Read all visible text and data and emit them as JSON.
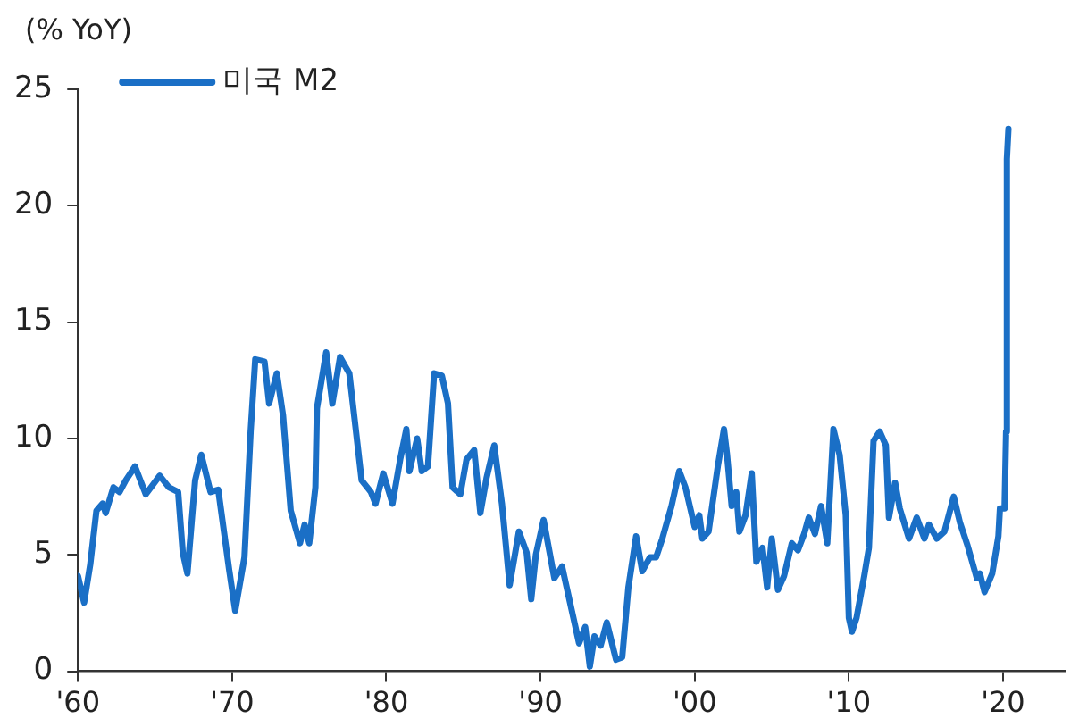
{
  "chart_data": {
    "type": "line",
    "ylabel": "(% YoY)",
    "legend": "top left",
    "grid": false,
    "marker": "none",
    "line_style": "solid",
    "xlim": [
      1960,
      2024
    ],
    "xticks": [
      {
        "value": 1960,
        "label": "'60"
      },
      {
        "value": 1970,
        "label": "'70"
      },
      {
        "value": 1980,
        "label": "'80"
      },
      {
        "value": 1990,
        "label": "'90"
      },
      {
        "value": 2000,
        "label": "'00"
      },
      {
        "value": 2010,
        "label": "'10"
      },
      {
        "value": 2020,
        "label": "'20"
      }
    ],
    "ylim": [
      0,
      25
    ],
    "yticks": [
      0,
      5,
      10,
      15,
      20,
      25
    ],
    "x": [
      1960.0,
      1960.4,
      1960.8,
      1961.2,
      1961.6,
      1961.8,
      1962.3,
      1962.7,
      1963.1,
      1963.7,
      1964.4,
      1965.3,
      1965.9,
      1966.5,
      1966.8,
      1967.1,
      1967.6,
      1968.0,
      1968.6,
      1969.1,
      1969.8,
      1970.2,
      1970.8,
      1971.2,
      1971.5,
      1972.1,
      1972.4,
      1972.9,
      1973.3,
      1973.8,
      1974.4,
      1974.7,
      1975.0,
      1975.4,
      1975.5,
      1976.1,
      1976.5,
      1977.0,
      1977.6,
      1978.0,
      1978.4,
      1979.0,
      1979.3,
      1979.8,
      1980.4,
      1980.9,
      1981.3,
      1981.5,
      1982.0,
      1982.3,
      1982.7,
      1983.1,
      1983.6,
      1984.0,
      1984.3,
      1984.8,
      1985.2,
      1985.7,
      1986.1,
      1986.5,
      1987.0,
      1987.5,
      1988.0,
      1988.6,
      1989.1,
      1989.4,
      1989.7,
      1990.2,
      1990.9,
      1991.4,
      1991.9,
      1992.5,
      1992.9,
      1993.2,
      1993.5,
      1993.9,
      1994.3,
      1994.9,
      1995.3,
      1995.7,
      1996.2,
      1996.6,
      1997.1,
      1997.5,
      1997.9,
      1998.5,
      1999.0,
      1999.4,
      2000.0,
      2000.3,
      2000.5,
      2000.9,
      2001.5,
      2001.9,
      2002.1,
      2002.4,
      2002.7,
      2002.9,
      2003.3,
      2003.7,
      2004.0,
      2004.4,
      2004.7,
      2005.0,
      2005.4,
      2005.8,
      2006.3,
      2006.7,
      2007.1,
      2007.4,
      2007.8,
      2008.2,
      2008.6,
      2009.0,
      2009.4,
      2009.8,
      2010.0,
      2010.2,
      2010.5,
      2011.0,
      2011.3,
      2011.6,
      2012.0,
      2012.4,
      2012.6,
      2013.0,
      2013.3,
      2013.9,
      2014.4,
      2014.9,
      2015.2,
      2015.7,
      2016.2,
      2016.8,
      2017.2,
      2017.7,
      2018.3,
      2018.5,
      2018.8,
      2019.3,
      2019.7,
      2019.8,
      2020.1,
      2020.2,
      2020.25,
      2020.35
    ],
    "series": [
      {
        "name": "미국 M2",
        "color": "#1a6fc6",
        "values": [
          4.1,
          2.95,
          4.6,
          6.9,
          7.2,
          6.8,
          7.9,
          7.7,
          8.2,
          8.8,
          7.6,
          8.4,
          7.9,
          7.7,
          5.1,
          4.2,
          8.2,
          9.3,
          7.7,
          7.8,
          4.4,
          2.6,
          4.9,
          10.3,
          13.4,
          13.3,
          11.5,
          12.8,
          11.0,
          6.9,
          5.5,
          6.3,
          5.5,
          7.9,
          11.3,
          13.7,
          11.5,
          13.5,
          12.8,
          10.5,
          8.2,
          7.7,
          7.2,
          8.5,
          7.2,
          9.1,
          10.4,
          8.6,
          10.0,
          8.6,
          8.8,
          12.8,
          12.7,
          11.5,
          7.9,
          7.6,
          9.1,
          9.5,
          6.8,
          8.3,
          9.7,
          7.2,
          3.7,
          6.0,
          5.1,
          3.1,
          5.0,
          6.5,
          4.0,
          4.5,
          3.0,
          1.2,
          1.9,
          0.2,
          1.5,
          1.1,
          2.1,
          0.5,
          0.6,
          3.6,
          5.8,
          4.3,
          4.9,
          4.9,
          5.7,
          7.1,
          8.6,
          7.9,
          6.2,
          6.7,
          5.7,
          6.0,
          8.8,
          10.4,
          9.3,
          7.1,
          7.7,
          6.0,
          6.7,
          8.5,
          4.7,
          5.3,
          3.6,
          5.7,
          3.5,
          4.1,
          5.5,
          5.2,
          5.9,
          6.6,
          5.9,
          7.1,
          5.5,
          10.4,
          9.3,
          6.7,
          2.3,
          1.7,
          2.3,
          4.1,
          5.3,
          9.9,
          10.3,
          9.7,
          6.6,
          8.1,
          7.0,
          5.7,
          6.6,
          5.7,
          6.3,
          5.7,
          6.0,
          7.5,
          6.4,
          5.4,
          4.0,
          4.2,
          3.4,
          4.2,
          5.8,
          7.0,
          7.0,
          10.3,
          22.0,
          23.3
        ]
      }
    ]
  }
}
